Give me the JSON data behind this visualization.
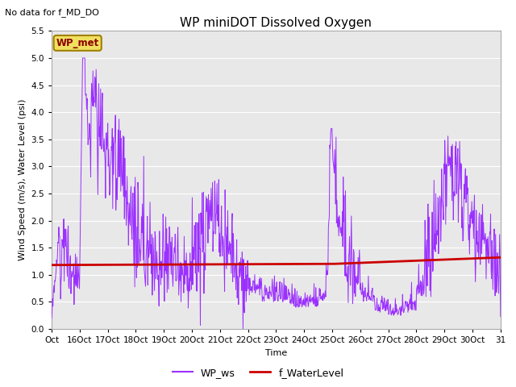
{
  "title": "WP miniDOT Dissolved Oxygen",
  "subtitle": "No data for f_MD_DO",
  "xlabel": "Time",
  "ylabel": "Wind Speed (m/s), Water Level (psi)",
  "ylim": [
    0.0,
    5.5
  ],
  "yticks": [
    0.0,
    0.5,
    1.0,
    1.5,
    2.0,
    2.5,
    3.0,
    3.5,
    4.0,
    4.5,
    5.0,
    5.5
  ],
  "bg_color": "#e8e8e8",
  "fig_color": "#ffffff",
  "legend_entries": [
    "WP_ws",
    "f_WaterLevel"
  ],
  "legend_colors": [
    "#9b30ff",
    "#cc0000"
  ],
  "wp_met_label": "WP_met",
  "wp_met_color": "#8b0000",
  "wp_met_bg": "#f0e060",
  "wp_met_edge": "#a08000",
  "ws_color": "#9b30ff",
  "wl_color": "#cc0000",
  "ws_linewidth": 0.7,
  "wl_linewidth": 2.0,
  "title_fontsize": 11,
  "label_fontsize": 8,
  "tick_fontsize": 7.5,
  "subtitle_fontsize": 8,
  "grid_color": "#ffffff",
  "spine_color": "#aaaaaa",
  "xlim": [
    15,
    31
  ]
}
